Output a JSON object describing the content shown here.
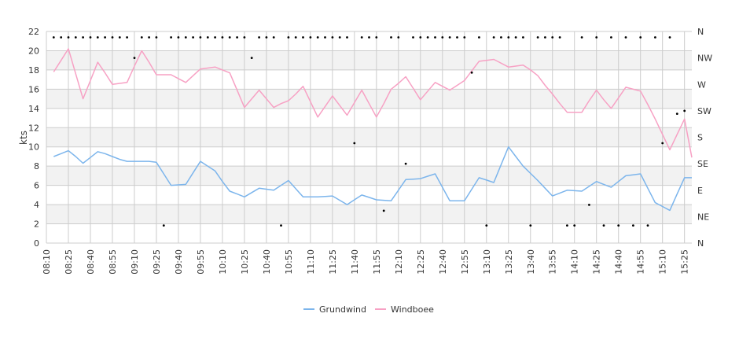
{
  "chart_data": {
    "type": "line",
    "ylabel": "kts",
    "ylim": [
      0,
      22
    ],
    "y_ticks": [
      0,
      2,
      4,
      6,
      8,
      10,
      12,
      14,
      16,
      18,
      20,
      22
    ],
    "x_tick_labels": [
      "08:10",
      "08:25",
      "08:40",
      "08:55",
      "09:10",
      "09:25",
      "09:40",
      "09:55",
      "10:10",
      "10:25",
      "10:40",
      "10:55",
      "11:10",
      "11:25",
      "11:40",
      "11:55",
      "12:10",
      "12:25",
      "12:40",
      "12:55",
      "13:10",
      "13:25",
      "13:40",
      "13:55",
      "14:10",
      "14:25",
      "14:40",
      "14:55",
      "15:10",
      "15:25"
    ],
    "x_start": "08:10",
    "x_end": "15:30",
    "grid": "alternating horizontal bands",
    "legend_position": "bottom-center",
    "direction_axis": {
      "side": "right",
      "labels": [
        "N",
        "NE",
        "E",
        "SE",
        "S",
        "SW",
        "W",
        "NW",
        "N"
      ]
    },
    "colors": {
      "Grundwind": "#7cb5ec",
      "Windboee": "#f7a1c4",
      "direction": "#000000",
      "band": "#f2f2f2",
      "grid": "#cccccc"
    },
    "series": [
      {
        "name": "Grundwind",
        "x": [
          "08:15",
          "08:20",
          "08:25",
          "08:30",
          "08:35",
          "08:40",
          "08:45",
          "08:50",
          "08:55",
          "09:00",
          "09:05",
          "09:10",
          "09:15",
          "09:20",
          "09:25",
          "09:30",
          "09:35",
          "09:40",
          "09:45",
          "09:50",
          "09:55",
          "10:00",
          "10:05",
          "10:10",
          "10:15",
          "10:20",
          "10:25",
          "10:30",
          "10:35",
          "10:40",
          "10:45",
          "10:50",
          "10:55",
          "11:00",
          "11:05",
          "11:10",
          "11:15",
          "11:20",
          "11:25",
          "11:30",
          "11:35",
          "11:40",
          "11:45",
          "11:50",
          "11:55",
          "12:00",
          "12:05",
          "12:10",
          "12:15",
          "12:20",
          "12:25",
          "12:30",
          "12:35",
          "12:40",
          "12:45",
          "12:50",
          "12:55",
          "13:00",
          "13:05",
          "13:10",
          "13:15",
          "13:20",
          "13:25",
          "13:30",
          "13:35",
          "13:40",
          "13:45",
          "13:50",
          "13:55",
          "14:00",
          "14:05",
          "14:10",
          "14:15",
          "14:20",
          "14:25",
          "14:30",
          "14:35",
          "14:40",
          "14:45",
          "14:50",
          "14:55",
          "15:00",
          "15:05",
          "15:10",
          "15:15",
          "15:20",
          "15:25",
          "15:30"
        ],
        "values": [
          9.0,
          9.3,
          9.6,
          9.0,
          8.3,
          8.9,
          9.5,
          9.3,
          9.0,
          8.7,
          8.5,
          8.5,
          8.5,
          8.5,
          8.4,
          7.2,
          6.0,
          6.05,
          6.1,
          7.3,
          8.5,
          8.0,
          7.5,
          6.4,
          5.4,
          5.1,
          4.8,
          5.25,
          5.7,
          5.6,
          5.5,
          6.0,
          6.5,
          5.65,
          4.8,
          4.8,
          4.8,
          4.85,
          4.9,
          4.45,
          4.0,
          4.5,
          5.0,
          4.75,
          4.5,
          4.45,
          4.4,
          5.5,
          6.6,
          6.65,
          6.7,
          6.95,
          7.2,
          5.8,
          4.4,
          4.4,
          4.4,
          5.6,
          6.8,
          6.55,
          6.3,
          8.15,
          10.0,
          9.0,
          8.0,
          7.25,
          6.5,
          5.7,
          4.9,
          5.2,
          5.5,
          5.45,
          5.4,
          5.9,
          6.4,
          6.1,
          5.8,
          6.4,
          7.0,
          7.1,
          7.2,
          5.7,
          4.2,
          3.8,
          3.4,
          5.1,
          6.8,
          6.8
        ]
      },
      {
        "name": "Windboee",
        "x": [
          "08:15",
          "08:20",
          "08:25",
          "08:30",
          "08:35",
          "08:40",
          "08:45",
          "08:50",
          "08:55",
          "09:00",
          "09:05",
          "09:10",
          "09:15",
          "09:20",
          "09:25",
          "09:30",
          "09:35",
          "09:40",
          "09:45",
          "09:50",
          "09:55",
          "10:00",
          "10:05",
          "10:10",
          "10:15",
          "10:20",
          "10:25",
          "10:30",
          "10:35",
          "10:40",
          "10:45",
          "10:50",
          "10:55",
          "11:00",
          "11:05",
          "11:10",
          "11:15",
          "11:20",
          "11:25",
          "11:30",
          "11:35",
          "11:40",
          "11:45",
          "11:50",
          "11:55",
          "12:00",
          "12:05",
          "12:10",
          "12:15",
          "12:20",
          "12:25",
          "12:30",
          "12:35",
          "12:40",
          "12:45",
          "12:50",
          "12:55",
          "13:00",
          "13:05",
          "13:10",
          "13:15",
          "13:20",
          "13:25",
          "13:30",
          "13:35",
          "13:40",
          "13:45",
          "13:50",
          "13:55",
          "14:00",
          "14:05",
          "14:10",
          "14:15",
          "14:20",
          "14:25",
          "14:30",
          "14:35",
          "14:40",
          "14:45",
          "14:50",
          "14:55",
          "15:00",
          "15:05",
          "15:10",
          "15:15",
          "15:20",
          "15:25",
          "15:30"
        ],
        "values": [
          17.8,
          19.0,
          20.2,
          17.6,
          15.0,
          16.9,
          18.8,
          17.7,
          16.5,
          16.6,
          16.7,
          18.4,
          20.0,
          18.8,
          17.5,
          17.5,
          17.5,
          17.1,
          16.7,
          17.4,
          18.1,
          18.2,
          18.3,
          18.0,
          17.7,
          15.9,
          14.1,
          15.0,
          15.9,
          15.0,
          14.1,
          14.5,
          14.8,
          15.5,
          16.3,
          14.7,
          13.1,
          14.2,
          15.3,
          14.3,
          13.3,
          14.6,
          15.9,
          14.5,
          13.1,
          14.5,
          16.0,
          16.6,
          17.3,
          16.1,
          14.9,
          15.8,
          16.7,
          16.3,
          15.9,
          16.4,
          16.9,
          17.9,
          18.9,
          19.0,
          19.1,
          18.7,
          18.3,
          18.4,
          18.5,
          18.0,
          17.4,
          16.4,
          15.5,
          14.5,
          13.6,
          13.6,
          13.6,
          14.8,
          15.9,
          14.9,
          14.0,
          15.1,
          16.2,
          16.0,
          15.8,
          14.4,
          12.9,
          11.3,
          9.7,
          11.3,
          12.9,
          8.9
        ]
      }
    ],
    "direction_series": {
      "unit": "degrees",
      "x": [
        "08:15",
        "08:20",
        "08:25",
        "08:30",
        "08:35",
        "08:40",
        "08:45",
        "08:50",
        "08:55",
        "09:00",
        "09:05",
        "09:10",
        "09:15",
        "09:20",
        "09:25",
        "09:30",
        "09:35",
        "09:40",
        "09:45",
        "09:50",
        "09:55",
        "10:00",
        "10:05",
        "10:10",
        "10:15",
        "10:20",
        "10:25",
        "10:30",
        "10:35",
        "10:40",
        "10:45",
        "10:50",
        "10:55",
        "11:00",
        "11:05",
        "11:10",
        "11:15",
        "11:20",
        "11:25",
        "11:30",
        "11:35",
        "11:40",
        "11:45",
        "11:50",
        "11:55",
        "12:00",
        "12:05",
        "12:10",
        "12:15",
        "12:20",
        "12:25",
        "12:30",
        "12:35",
        "12:40",
        "12:45",
        "12:50",
        "12:55",
        "13:00",
        "13:05",
        "13:10",
        "13:15",
        "13:20",
        "13:25",
        "13:30",
        "13:35",
        "13:40",
        "13:45",
        "13:50",
        "13:55",
        "14:00",
        "14:05",
        "14:10",
        "14:15",
        "14:20",
        "14:25",
        "14:30",
        "14:35",
        "14:40",
        "14:45",
        "14:50",
        "14:55",
        "15:00",
        "15:05",
        "15:10",
        "15:15",
        "15:20",
        "15:25"
      ],
      "values": [
        350,
        350,
        350,
        350,
        350,
        350,
        350,
        350,
        350,
        350,
        350,
        315,
        350,
        350,
        350,
        30,
        350,
        350,
        350,
        350,
        350,
        350,
        350,
        350,
        350,
        350,
        350,
        315,
        350,
        350,
        350,
        30,
        350,
        350,
        350,
        350,
        350,
        350,
        350,
        350,
        350,
        170,
        350,
        350,
        350,
        55,
        350,
        350,
        135,
        350,
        350,
        350,
        350,
        350,
        350,
        350,
        350,
        290,
        350,
        30,
        350,
        350,
        350,
        350,
        350,
        30,
        350,
        350,
        350,
        350,
        30,
        30,
        350,
        65,
        350,
        30,
        350,
        30,
        350,
        30,
        350,
        30,
        350,
        170,
        350,
        220,
        225
      ]
    }
  }
}
